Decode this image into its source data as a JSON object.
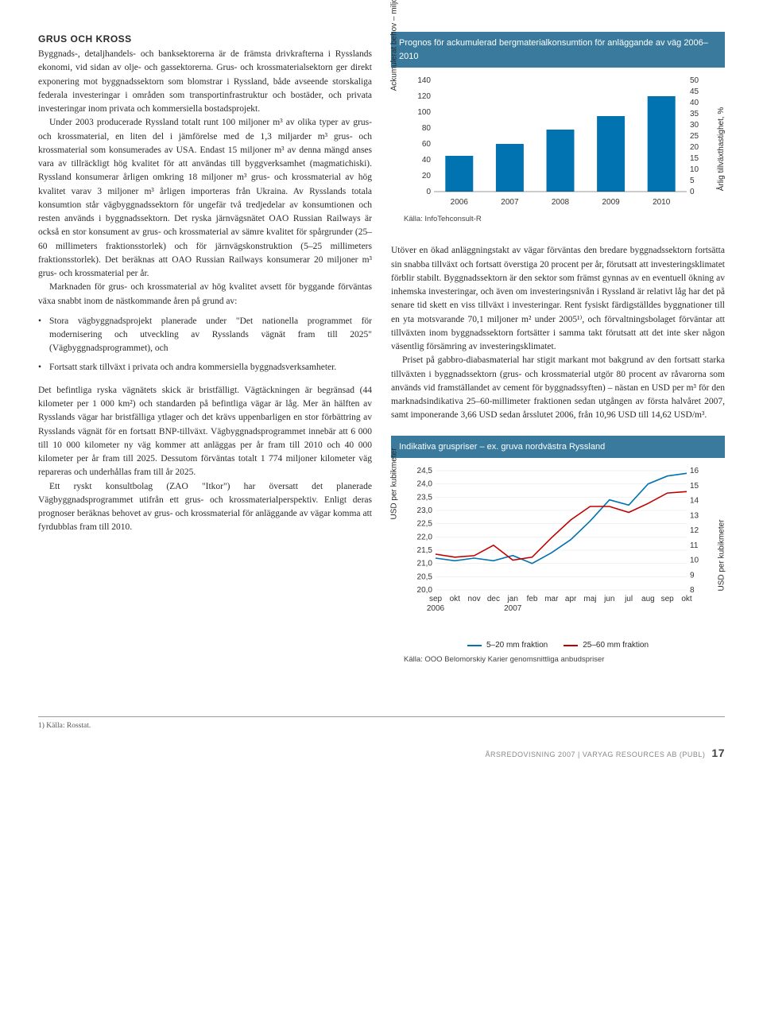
{
  "left": {
    "heading": "GRUS OCH KROSS",
    "p1": "Byggnads-, detaljhandels- och banksektorerna är de främsta drivkrafterna i Rysslands ekonomi, vid sidan av olje- och gassektorerna. Grus- och krossmaterialsektorn ger direkt exponering mot byggnadssektorn som blomstrar i Ryssland, både avseende storskaliga federala investeringar i områden som transportinfrastruktur och bostäder, och privata investeringar inom privata och kommersiella bostadsprojekt.",
    "p2": "Under 2003 producerade Ryssland totalt runt 100 miljoner m³ av olika typer av grus- och krossmaterial, en liten del i jämförelse med de 1,3 miljarder m³ grus- och krossmaterial som konsumerades av USA. Endast 15 miljoner m³ av denna mängd anses vara av tillräckligt hög kvalitet för att användas till byggverksamhet (magmatichiski). Ryssland konsumerar årligen omkring 18 miljoner m³ grus- och krossmaterial av hög kvalitet varav 3 miljoner m³ årligen importeras från Ukraina. Av Rysslands totala konsumtion står vägbyggnadssektorn för ungefär två tredjedelar av konsumtionen och resten används i byggnadssektorn. Det ryska järnvägsnätet OAO Russian Railways är också en stor konsument av grus- och krossmaterial av sämre kvalitet för spårgrunder (25–60 millimeters fraktionsstorlek) och för järnvägskonstruktion (5–25 millimeters fraktionsstorlek). Det beräknas att OAO Russian Railways konsumerar 20 miljoner m³ grus- och krossmaterial per år.",
    "p3": "Marknaden för grus- och krossmaterial av hög kvalitet avsett för byggande förväntas växa snabbt inom de nästkommande åren på grund av:",
    "bullet1": "Stora vägbyggnadsprojekt planerade under \"Det nationella programmet för modernisering och utveckling av Rysslands vägnät fram till 2025\" (Vägbyggnadsprogrammet), och",
    "bullet2": "Fortsatt stark tillväxt i privata och andra kommersiella byggnadsverksamheter.",
    "p4": "Det befintliga ryska vägnätets skick är bristfälligt. Vägtäckningen är begränsad (44 kilometer per 1 000 km²) och standarden på befintliga vägar är låg. Mer än hälften av Rysslands vägar har bristfälliga ytlager och det krävs uppenbarligen en stor förbättring av Rysslands vägnät för en fortsatt BNP-tillväxt. Vägbyggnadsprogrammet innebär att 6 000 till 10 000 kilometer ny väg kommer att anläggas per år fram till 2010 och 40 000 kilometer per år fram till 2025. Dessutom förväntas totalt 1 774 miljoner kilometer väg repareras och underhållas fram till år 2025.",
    "p5": "Ett ryskt konsultbolag (ZAO \"Itkor\") har översatt det planerade Vägbyggnadsprogrammet utifrån ett grus- och krossmaterialperspektiv. Enligt deras prognoser beräknas behovet av grus- och krossmaterial för anläggande av vägar komma att fyrdubblas fram till 2010.",
    "footnote": "1) Källa: Rosstat."
  },
  "right": {
    "p1": "Utöver en ökad anläggningstakt av vägar förväntas den bredare byggnadssektorn fortsätta sin snabba tillväxt och fortsatt överstiga 20 procent per år, förutsatt att investeringsklimatet förblir stabilt. Byggnadssektorn är den sektor som främst gynnas av en eventuell ökning av inhemska investeringar, och även om investeringsnivån i Ryssland är relativt låg har det på senare tid skett en viss tillväxt i investeringar. Rent fysiskt färdigställdes byggnationer till en yta motsvarande 70,1 miljoner m² under 2005¹⁾, och förvaltningsbolaget förväntar att tillväxten inom byggnadssektorn fortsätter i samma takt förutsatt att det inte sker någon väsentlig försämring av investeringsklimatet.",
    "p2": "Priset på gabbro-diabasmaterial har stigit markant mot bakgrund av den fortsatt starka tillväxten i byggnadssektorn (grus- och krossmaterial utgör 80 procent av råvarorna som används vid framställandet av cement för byggnadssyften) – nästan en USD per m³ för den marknadsindikativa 25–60-millimeter fraktionen sedan utgången av första halvåret 2007, samt imponerande 3,66 USD sedan årsslutet 2006, från 10,96 USD till 14,62 USD/m³."
  },
  "chart1": {
    "title": "Prognos för ackumulerad bergmaterialkonsumtion för anläggande av väg 2006–2010",
    "categories": [
      "2006",
      "2007",
      "2008",
      "2009",
      "2010"
    ],
    "values": [
      45,
      60,
      78,
      95,
      120
    ],
    "yLeftLabel": "Ackumulerat behov – miljoner m³",
    "yRightLabel": "Årlig tillväxthastighet, %",
    "yLeftMax": 140,
    "yLeftStep": 20,
    "yRightMax": 50,
    "yRightStep": 5,
    "barColor": "#0073b0",
    "source": "Källa: InfoTehconsult-R"
  },
  "chart2": {
    "title": "Indikativa gruspriser – ex. gruva nordvästra Ryssland",
    "xLabels": [
      "sep",
      "okt",
      "nov",
      "dec",
      "jan",
      "feb",
      "mar",
      "apr",
      "maj",
      "jun",
      "jul",
      "aug",
      "sep",
      "okt"
    ],
    "xYears": [
      "2006",
      "",
      "",
      "",
      "2007",
      "",
      "",
      "",
      "",
      "",
      "",
      "",
      "",
      ""
    ],
    "yLeftTicks": [
      "20,0",
      "20,5",
      "21,0",
      "21,5",
      "22,0",
      "22,5",
      "23,0",
      "23,5",
      "24,0",
      "24,5"
    ],
    "yLeftMin": 20.0,
    "yLeftMax": 24.5,
    "yRightTicks": [
      "8",
      "9",
      "10",
      "11",
      "12",
      "13",
      "14",
      "15",
      "16"
    ],
    "yRightMin": 8,
    "yRightMax": 16,
    "yLeftLabel": "USD per kubikmeter",
    "yRightLabel": "USD per kubikmeter",
    "series": [
      {
        "name": "5–20 mm fraktion",
        "color": "#0073b0",
        "axis": "left",
        "values": [
          21.2,
          21.1,
          21.2,
          21.1,
          21.3,
          21.0,
          21.4,
          21.9,
          22.6,
          23.4,
          23.2,
          24.0,
          24.3,
          24.4
        ]
      },
      {
        "name": "25–60 mm fraktion",
        "color": "#c00000",
        "axis": "right",
        "values": [
          10.4,
          10.2,
          10.3,
          11.0,
          10.0,
          10.2,
          11.5,
          12.7,
          13.6,
          13.6,
          13.2,
          13.8,
          14.5,
          14.6
        ]
      }
    ],
    "source": "Källa: OOO Belomorskiy Karier genomsnittliga anbudspriser"
  },
  "footer": {
    "text": "ÅRSREDOVISNING 2007 | VARYAG RESOURCES AB (PUBL)",
    "page": "17"
  }
}
